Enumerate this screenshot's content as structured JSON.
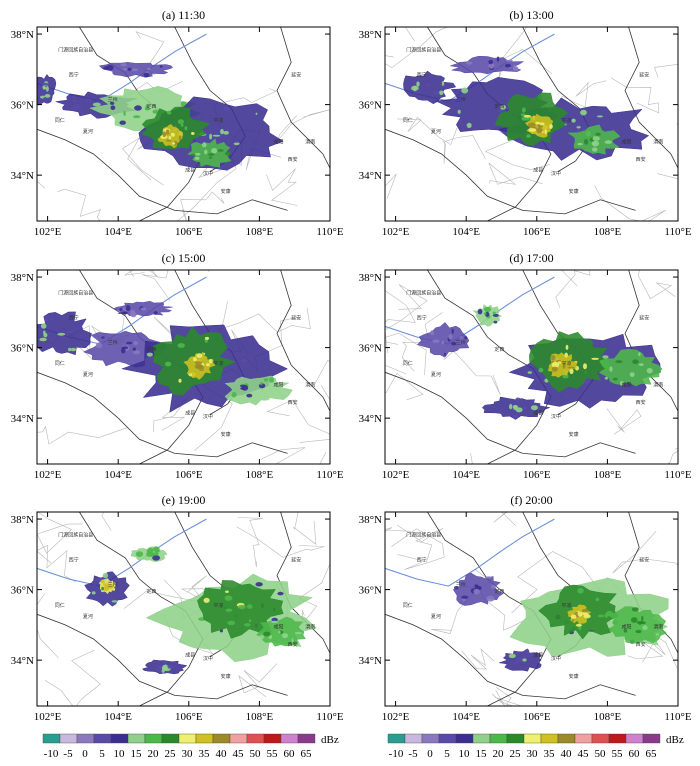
{
  "figure": {
    "unit": "dBz",
    "colors": {
      "frame": "#000000",
      "province_border": "#333333",
      "county_border": "#b8b8b8",
      "river": "#6b8fd8"
    }
  },
  "chart_data": [
    {
      "type": "heatmap",
      "title": "(a) 11:30",
      "xlim": [
        101.7,
        110.0
      ],
      "ylim": [
        32.7,
        38.2
      ],
      "x_ticks": [
        102,
        104,
        106,
        108,
        110
      ],
      "x_tick_labels": [
        "102°E",
        "104°E",
        "106°E",
        "108°E",
        "110°E"
      ],
      "y_ticks": [
        34,
        36,
        38
      ],
      "y_tick_labels": [
        "34°N",
        "36°N",
        "38°N"
      ],
      "echo_regions": [
        {
          "lon": 101.9,
          "lat": 36.4,
          "rx": 0.35,
          "ry": 0.45,
          "dbz": 10
        },
        {
          "lon": 103.4,
          "lat": 36.0,
          "rx": 1.1,
          "ry": 0.35,
          "dbz": 10
        },
        {
          "lon": 104.8,
          "lat": 35.9,
          "rx": 1.4,
          "ry": 0.6,
          "dbz": 15
        },
        {
          "lon": 106.6,
          "lat": 35.2,
          "rx": 2.0,
          "ry": 1.0,
          "dbz": 10
        },
        {
          "lon": 105.6,
          "lat": 35.3,
          "rx": 0.9,
          "ry": 0.6,
          "dbz": 25
        },
        {
          "lon": 105.5,
          "lat": 35.1,
          "rx": 0.35,
          "ry": 0.3,
          "dbz": 35
        },
        {
          "lon": 106.6,
          "lat": 34.6,
          "rx": 0.6,
          "ry": 0.4,
          "dbz": 20
        },
        {
          "lon": 104.5,
          "lat": 37.0,
          "rx": 1.0,
          "ry": 0.2,
          "dbz": 5
        }
      ]
    },
    {
      "type": "heatmap",
      "title": "(b) 13:00",
      "xlim": [
        101.7,
        110.0
      ],
      "ylim": [
        32.7,
        38.2
      ],
      "x_ticks": [
        102,
        104,
        106,
        108,
        110
      ],
      "x_tick_labels": [
        "102°E",
        "104°E",
        "106°E",
        "108°E",
        "110°E"
      ],
      "y_ticks": [
        34,
        36,
        38
      ],
      "y_tick_labels": [
        "34°N",
        "36°N",
        "38°N"
      ],
      "echo_regions": [
        {
          "lon": 102.9,
          "lat": 36.5,
          "rx": 0.7,
          "ry": 0.45,
          "dbz": 10
        },
        {
          "lon": 104.9,
          "lat": 35.9,
          "rx": 1.6,
          "ry": 0.8,
          "dbz": 10
        },
        {
          "lon": 107.2,
          "lat": 35.3,
          "rx": 2.0,
          "ry": 0.8,
          "dbz": 10
        },
        {
          "lon": 105.9,
          "lat": 35.6,
          "rx": 1.0,
          "ry": 0.7,
          "dbz": 25
        },
        {
          "lon": 106.1,
          "lat": 35.4,
          "rx": 0.4,
          "ry": 0.3,
          "dbz": 35
        },
        {
          "lon": 107.6,
          "lat": 35.0,
          "rx": 0.7,
          "ry": 0.4,
          "dbz": 20
        },
        {
          "lon": 104.6,
          "lat": 37.1,
          "rx": 1.0,
          "ry": 0.25,
          "dbz": 5
        }
      ]
    },
    {
      "type": "heatmap",
      "title": "(c) 15:00",
      "xlim": [
        101.7,
        110.0
      ],
      "ylim": [
        32.7,
        38.2
      ],
      "x_ticks": [
        102,
        104,
        106,
        108,
        110
      ],
      "x_tick_labels": [
        "102°E",
        "104°E",
        "106°E",
        "108°E",
        "110°E"
      ],
      "y_ticks": [
        34,
        36,
        38
      ],
      "y_tick_labels": [
        "34°N",
        "36°N",
        "38°N"
      ],
      "echo_regions": [
        {
          "lon": 102.4,
          "lat": 36.4,
          "rx": 0.8,
          "ry": 0.6,
          "dbz": 10
        },
        {
          "lon": 104.2,
          "lat": 36.0,
          "rx": 1.1,
          "ry": 0.5,
          "dbz": 5
        },
        {
          "lon": 106.5,
          "lat": 35.4,
          "rx": 2.1,
          "ry": 1.2,
          "dbz": 10
        },
        {
          "lon": 106.1,
          "lat": 35.6,
          "rx": 1.1,
          "ry": 0.9,
          "dbz": 25
        },
        {
          "lon": 106.3,
          "lat": 35.5,
          "rx": 0.4,
          "ry": 0.35,
          "dbz": 35
        },
        {
          "lon": 107.9,
          "lat": 34.8,
          "rx": 0.9,
          "ry": 0.4,
          "dbz": 15
        },
        {
          "lon": 104.7,
          "lat": 37.1,
          "rx": 0.8,
          "ry": 0.2,
          "dbz": 5
        }
      ]
    },
    {
      "type": "heatmap",
      "title": "(d) 17:00",
      "xlim": [
        101.7,
        110.0
      ],
      "ylim": [
        32.7,
        38.2
      ],
      "x_ticks": [
        102,
        104,
        106,
        108,
        110
      ],
      "x_tick_labels": [
        "102°E",
        "104°E",
        "106°E",
        "108°E",
        "110°E"
      ],
      "y_ticks": [
        34,
        36,
        38
      ],
      "y_tick_labels": [
        "34°N",
        "36°N",
        "38°N"
      ],
      "echo_regions": [
        {
          "lon": 103.4,
          "lat": 36.2,
          "rx": 0.7,
          "ry": 0.45,
          "dbz": 5
        },
        {
          "lon": 104.6,
          "lat": 36.9,
          "rx": 0.4,
          "ry": 0.3,
          "dbz": 15
        },
        {
          "lon": 107.5,
          "lat": 35.3,
          "rx": 2.0,
          "ry": 1.1,
          "dbz": 10
        },
        {
          "lon": 106.9,
          "lat": 35.6,
          "rx": 1.1,
          "ry": 0.8,
          "dbz": 25
        },
        {
          "lon": 106.7,
          "lat": 35.5,
          "rx": 0.4,
          "ry": 0.35,
          "dbz": 35
        },
        {
          "lon": 108.6,
          "lat": 35.4,
          "rx": 0.9,
          "ry": 0.5,
          "dbz": 20
        },
        {
          "lon": 105.4,
          "lat": 34.3,
          "rx": 0.9,
          "ry": 0.3,
          "dbz": 10
        }
      ]
    },
    {
      "type": "heatmap",
      "title": "(e) 19:00",
      "xlim": [
        101.7,
        110.0
      ],
      "ylim": [
        32.7,
        38.2
      ],
      "x_ticks": [
        102,
        104,
        106,
        108,
        110
      ],
      "x_tick_labels": [
        "102°E",
        "104°E",
        "106°E",
        "108°E",
        "110°E"
      ],
      "y_ticks": [
        34,
        36,
        38
      ],
      "y_tick_labels": [
        "34°N",
        "36°N",
        "38°N"
      ],
      "echo_regions": [
        {
          "lon": 103.7,
          "lat": 36.0,
          "rx": 0.6,
          "ry": 0.5,
          "dbz": 10
        },
        {
          "lon": 103.7,
          "lat": 36.1,
          "rx": 0.25,
          "ry": 0.2,
          "dbz": 30
        },
        {
          "lon": 107.3,
          "lat": 35.2,
          "rx": 2.2,
          "ry": 1.2,
          "dbz": 15
        },
        {
          "lon": 107.5,
          "lat": 35.5,
          "rx": 1.2,
          "ry": 0.8,
          "dbz": 25
        },
        {
          "lon": 108.6,
          "lat": 34.8,
          "rx": 0.7,
          "ry": 0.4,
          "dbz": 20
        },
        {
          "lon": 105.3,
          "lat": 33.8,
          "rx": 0.6,
          "ry": 0.2,
          "dbz": 10
        },
        {
          "lon": 104.9,
          "lat": 37.0,
          "rx": 0.5,
          "ry": 0.2,
          "dbz": 15
        }
      ]
    },
    {
      "type": "heatmap",
      "title": "(f) 20:00",
      "xlim": [
        101.7,
        110.0
      ],
      "ylim": [
        32.7,
        38.2
      ],
      "x_ticks": [
        102,
        104,
        106,
        108,
        110
      ],
      "x_tick_labels": [
        "102°E",
        "104°E",
        "106°E",
        "108°E",
        "110°E"
      ],
      "y_ticks": [
        34,
        36,
        38
      ],
      "y_tick_labels": [
        "34°N",
        "36°N",
        "38°N"
      ],
      "echo_regions": [
        {
          "lon": 104.3,
          "lat": 36.0,
          "rx": 0.7,
          "ry": 0.45,
          "dbz": 5
        },
        {
          "lon": 107.5,
          "lat": 35.2,
          "rx": 2.2,
          "ry": 1.1,
          "dbz": 15
        },
        {
          "lon": 107.3,
          "lat": 35.4,
          "rx": 1.1,
          "ry": 0.7,
          "dbz": 25
        },
        {
          "lon": 107.2,
          "lat": 35.3,
          "rx": 0.3,
          "ry": 0.25,
          "dbz": 35
        },
        {
          "lon": 108.9,
          "lat": 35.0,
          "rx": 0.8,
          "ry": 0.5,
          "dbz": 20
        },
        {
          "lon": 105.6,
          "lat": 34.0,
          "rx": 0.6,
          "ry": 0.3,
          "dbz": 10
        }
      ]
    }
  ],
  "colorbar": {
    "unit": "dBz",
    "tick_labels": [
      "-10",
      "-5",
      "0",
      "5",
      "10",
      "15",
      "20",
      "25",
      "30",
      "35",
      "40",
      "45",
      "50",
      "55",
      "60",
      "65"
    ],
    "colors": [
      "#2a9d8f",
      "#c9b7e0",
      "#8a78c0",
      "#5a4aa8",
      "#3a2f8f",
      "#8fd18a",
      "#4db84a",
      "#2a8a2a",
      "#f0f070",
      "#d0c020",
      "#9c8a2a",
      "#f0a0a0",
      "#e05050",
      "#c01818",
      "#d080d0",
      "#8a3a8a"
    ]
  },
  "map_labels": [
    {
      "lon": 102.3,
      "lat": 37.5,
      "text": "门源回族自治县"
    },
    {
      "lon": 102.6,
      "lat": 36.8,
      "text": "西宁"
    },
    {
      "lon": 103.7,
      "lat": 36.1,
      "text": "兰州"
    },
    {
      "lon": 102.2,
      "lat": 35.5,
      "text": "同仁"
    },
    {
      "lon": 103.0,
      "lat": 35.2,
      "text": "夏河"
    },
    {
      "lon": 104.8,
      "lat": 35.9,
      "text": "定西"
    },
    {
      "lon": 106.7,
      "lat": 35.5,
      "text": "平凉"
    },
    {
      "lon": 108.9,
      "lat": 36.8,
      "text": "延安"
    },
    {
      "lon": 108.4,
      "lat": 34.9,
      "text": "咸阳"
    },
    {
      "lon": 108.8,
      "lat": 34.4,
      "text": "西安"
    },
    {
      "lon": 106.4,
      "lat": 34.0,
      "text": "汉中"
    },
    {
      "lon": 106.9,
      "lat": 33.5,
      "text": "安康"
    },
    {
      "lon": 109.3,
      "lat": 34.9,
      "text": "渭南"
    },
    {
      "lon": 105.9,
      "lat": 34.1,
      "text": "成县"
    }
  ]
}
